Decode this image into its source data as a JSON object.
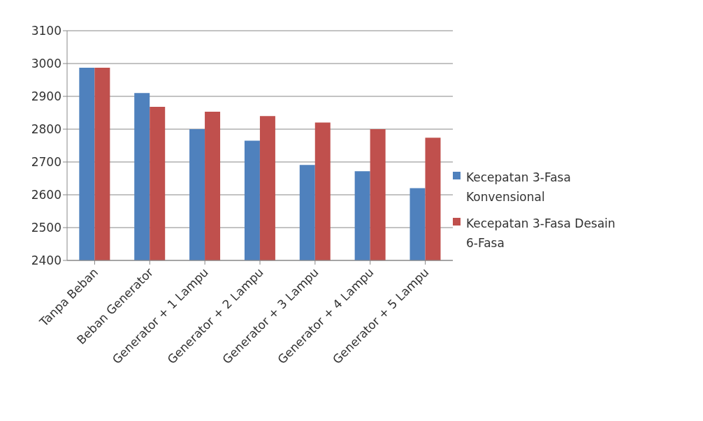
{
  "chart_data": {
    "type": "bar",
    "categories": [
      "Tanpa Beban",
      "Beban Generator",
      "Generator + 1 Lampu",
      "Generator + 2 Lampu",
      "Generator + 3 Lampu",
      "Generator + 4 Lampu",
      "Generator + 5 Lampu"
    ],
    "series": [
      {
        "name": "Kecepatan 3-Fasa Konvensional",
        "color": "#4f81bd",
        "values": [
          2987,
          2910,
          2800,
          2765,
          2691,
          2672,
          2620
        ]
      },
      {
        "name": "Kecepatan 3-Fasa Desain 6-Fasa",
        "color": "#c0504d",
        "values": [
          2987,
          2868,
          2853,
          2840,
          2820,
          2800,
          2774
        ]
      }
    ],
    "ylim": [
      2400,
      3100
    ],
    "yticks": [
      2400,
      2500,
      2600,
      2700,
      2800,
      2900,
      3000,
      3100
    ],
    "grid": "y",
    "legend": "right"
  }
}
